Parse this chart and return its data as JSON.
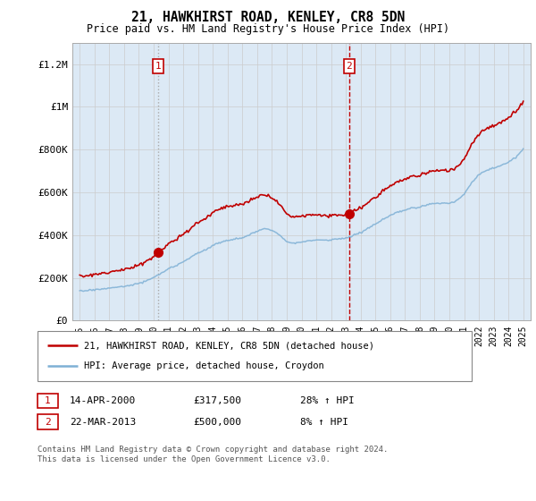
{
  "title": "21, HAWKHIRST ROAD, KENLEY, CR8 5DN",
  "subtitle": "Price paid vs. HM Land Registry's House Price Index (HPI)",
  "legend_line1": "21, HAWKHIRST ROAD, KENLEY, CR8 5DN (detached house)",
  "legend_line2": "HPI: Average price, detached house, Croydon",
  "footer": "Contains HM Land Registry data © Crown copyright and database right 2024.\nThis data is licensed under the Open Government Licence v3.0.",
  "sale1_date": "14-APR-2000",
  "sale1_price": "£317,500",
  "sale1_hpi": "28% ↑ HPI",
  "sale2_date": "22-MAR-2013",
  "sale2_price": "£500,000",
  "sale2_hpi": "8% ↑ HPI",
  "hpi_color": "#7eb0d5",
  "price_color": "#c00000",
  "bg_fill_color": "#dce9f5",
  "plot_bg": "#ffffff",
  "grid_color": "#cccccc",
  "sale1_x": 2000.29,
  "sale2_x": 2013.22,
  "sale1_y": 317500,
  "sale2_y": 500000,
  "ylim_min": 0,
  "ylim_max": 1300000,
  "xlim_min": 1994.5,
  "xlim_max": 2025.5,
  "yticks": [
    0,
    200000,
    400000,
    600000,
    800000,
    1000000,
    1200000
  ],
  "ytick_labels": [
    "£0",
    "£200K",
    "£400K",
    "£600K",
    "£800K",
    "£1M",
    "£1.2M"
  ],
  "xticks": [
    1995,
    1996,
    1997,
    1998,
    1999,
    2000,
    2001,
    2002,
    2003,
    2004,
    2005,
    2006,
    2007,
    2008,
    2009,
    2010,
    2011,
    2012,
    2013,
    2014,
    2015,
    2016,
    2017,
    2018,
    2019,
    2020,
    2021,
    2022,
    2023,
    2024,
    2025
  ]
}
